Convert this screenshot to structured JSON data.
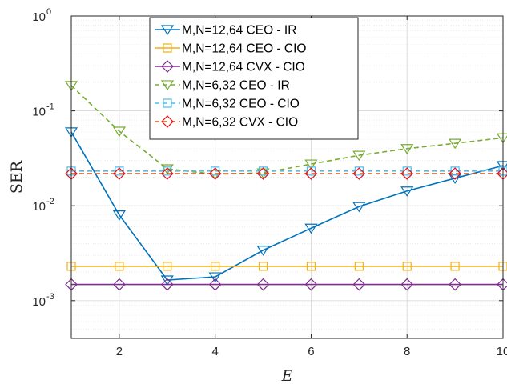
{
  "chart_data": {
    "type": "line",
    "title": "",
    "xlabel": "E",
    "ylabel": "SER",
    "xlim": [
      1,
      10
    ],
    "ylim": [
      0.0004,
      1
    ],
    "yscale": "log",
    "grid": true,
    "minor_grid": true,
    "legend_position": "top-center",
    "xticks": [
      2,
      4,
      6,
      8,
      10
    ],
    "xtick_labels": [
      "2",
      "4",
      "6",
      "8",
      "10"
    ],
    "yticks": [
      {
        "value": 0.001,
        "base": "10",
        "exp": "-3"
      },
      {
        "value": 0.01,
        "base": "10",
        "exp": "-2"
      },
      {
        "value": 0.1,
        "base": "10",
        "exp": "-1"
      },
      {
        "value": 1,
        "base": "10",
        "exp": "0"
      }
    ],
    "x": [
      1,
      2,
      3,
      4,
      5,
      6,
      7,
      8,
      9,
      10
    ],
    "series": [
      {
        "name": "M,N=12,64 CEO - IR",
        "color": "#0072bd",
        "marker": "triangle-down",
        "line": "solid",
        "values": [
          0.06,
          0.008,
          0.00165,
          0.00178,
          0.0034,
          0.0058,
          0.0098,
          0.0143,
          0.0195,
          0.0265
        ]
      },
      {
        "name": "M,N=12,64 CEO - CIO",
        "color": "#edb120",
        "marker": "square",
        "line": "solid",
        "values": [
          0.0023,
          0.0023,
          0.0023,
          0.0023,
          0.0023,
          0.0023,
          0.0023,
          0.0023,
          0.0023,
          0.0023
        ]
      },
      {
        "name": "M,N=12,64 CVX - CIO",
        "color": "#7e2f8e",
        "marker": "diamond",
        "line": "solid",
        "values": [
          0.00148,
          0.00148,
          0.00148,
          0.00148,
          0.00148,
          0.00148,
          0.00148,
          0.00148,
          0.00148,
          0.00148
        ]
      },
      {
        "name": "M,N=6,32 CEO - IR",
        "color": "#77ac30",
        "marker": "triangle-down",
        "line": "dashed",
        "values": [
          0.185,
          0.061,
          0.0245,
          0.0215,
          0.0222,
          0.0275,
          0.034,
          0.04,
          0.0455,
          0.052
        ]
      },
      {
        "name": "M,N=6,32 CEO - CIO",
        "color": "#4dbeee",
        "marker": "square",
        "line": "dashed",
        "values": [
          0.0232,
          0.0232,
          0.0232,
          0.0232,
          0.0232,
          0.0232,
          0.0232,
          0.0232,
          0.0232,
          0.0232
        ]
      },
      {
        "name": "M,N=6,32 CVX - CIO",
        "color": "#d95319",
        "marker_color": "#e8101a",
        "marker": "diamond",
        "line": "dashed",
        "values": [
          0.0218,
          0.0218,
          0.0218,
          0.0218,
          0.0218,
          0.0218,
          0.0218,
          0.0218,
          0.0218,
          0.0218
        ]
      }
    ]
  }
}
